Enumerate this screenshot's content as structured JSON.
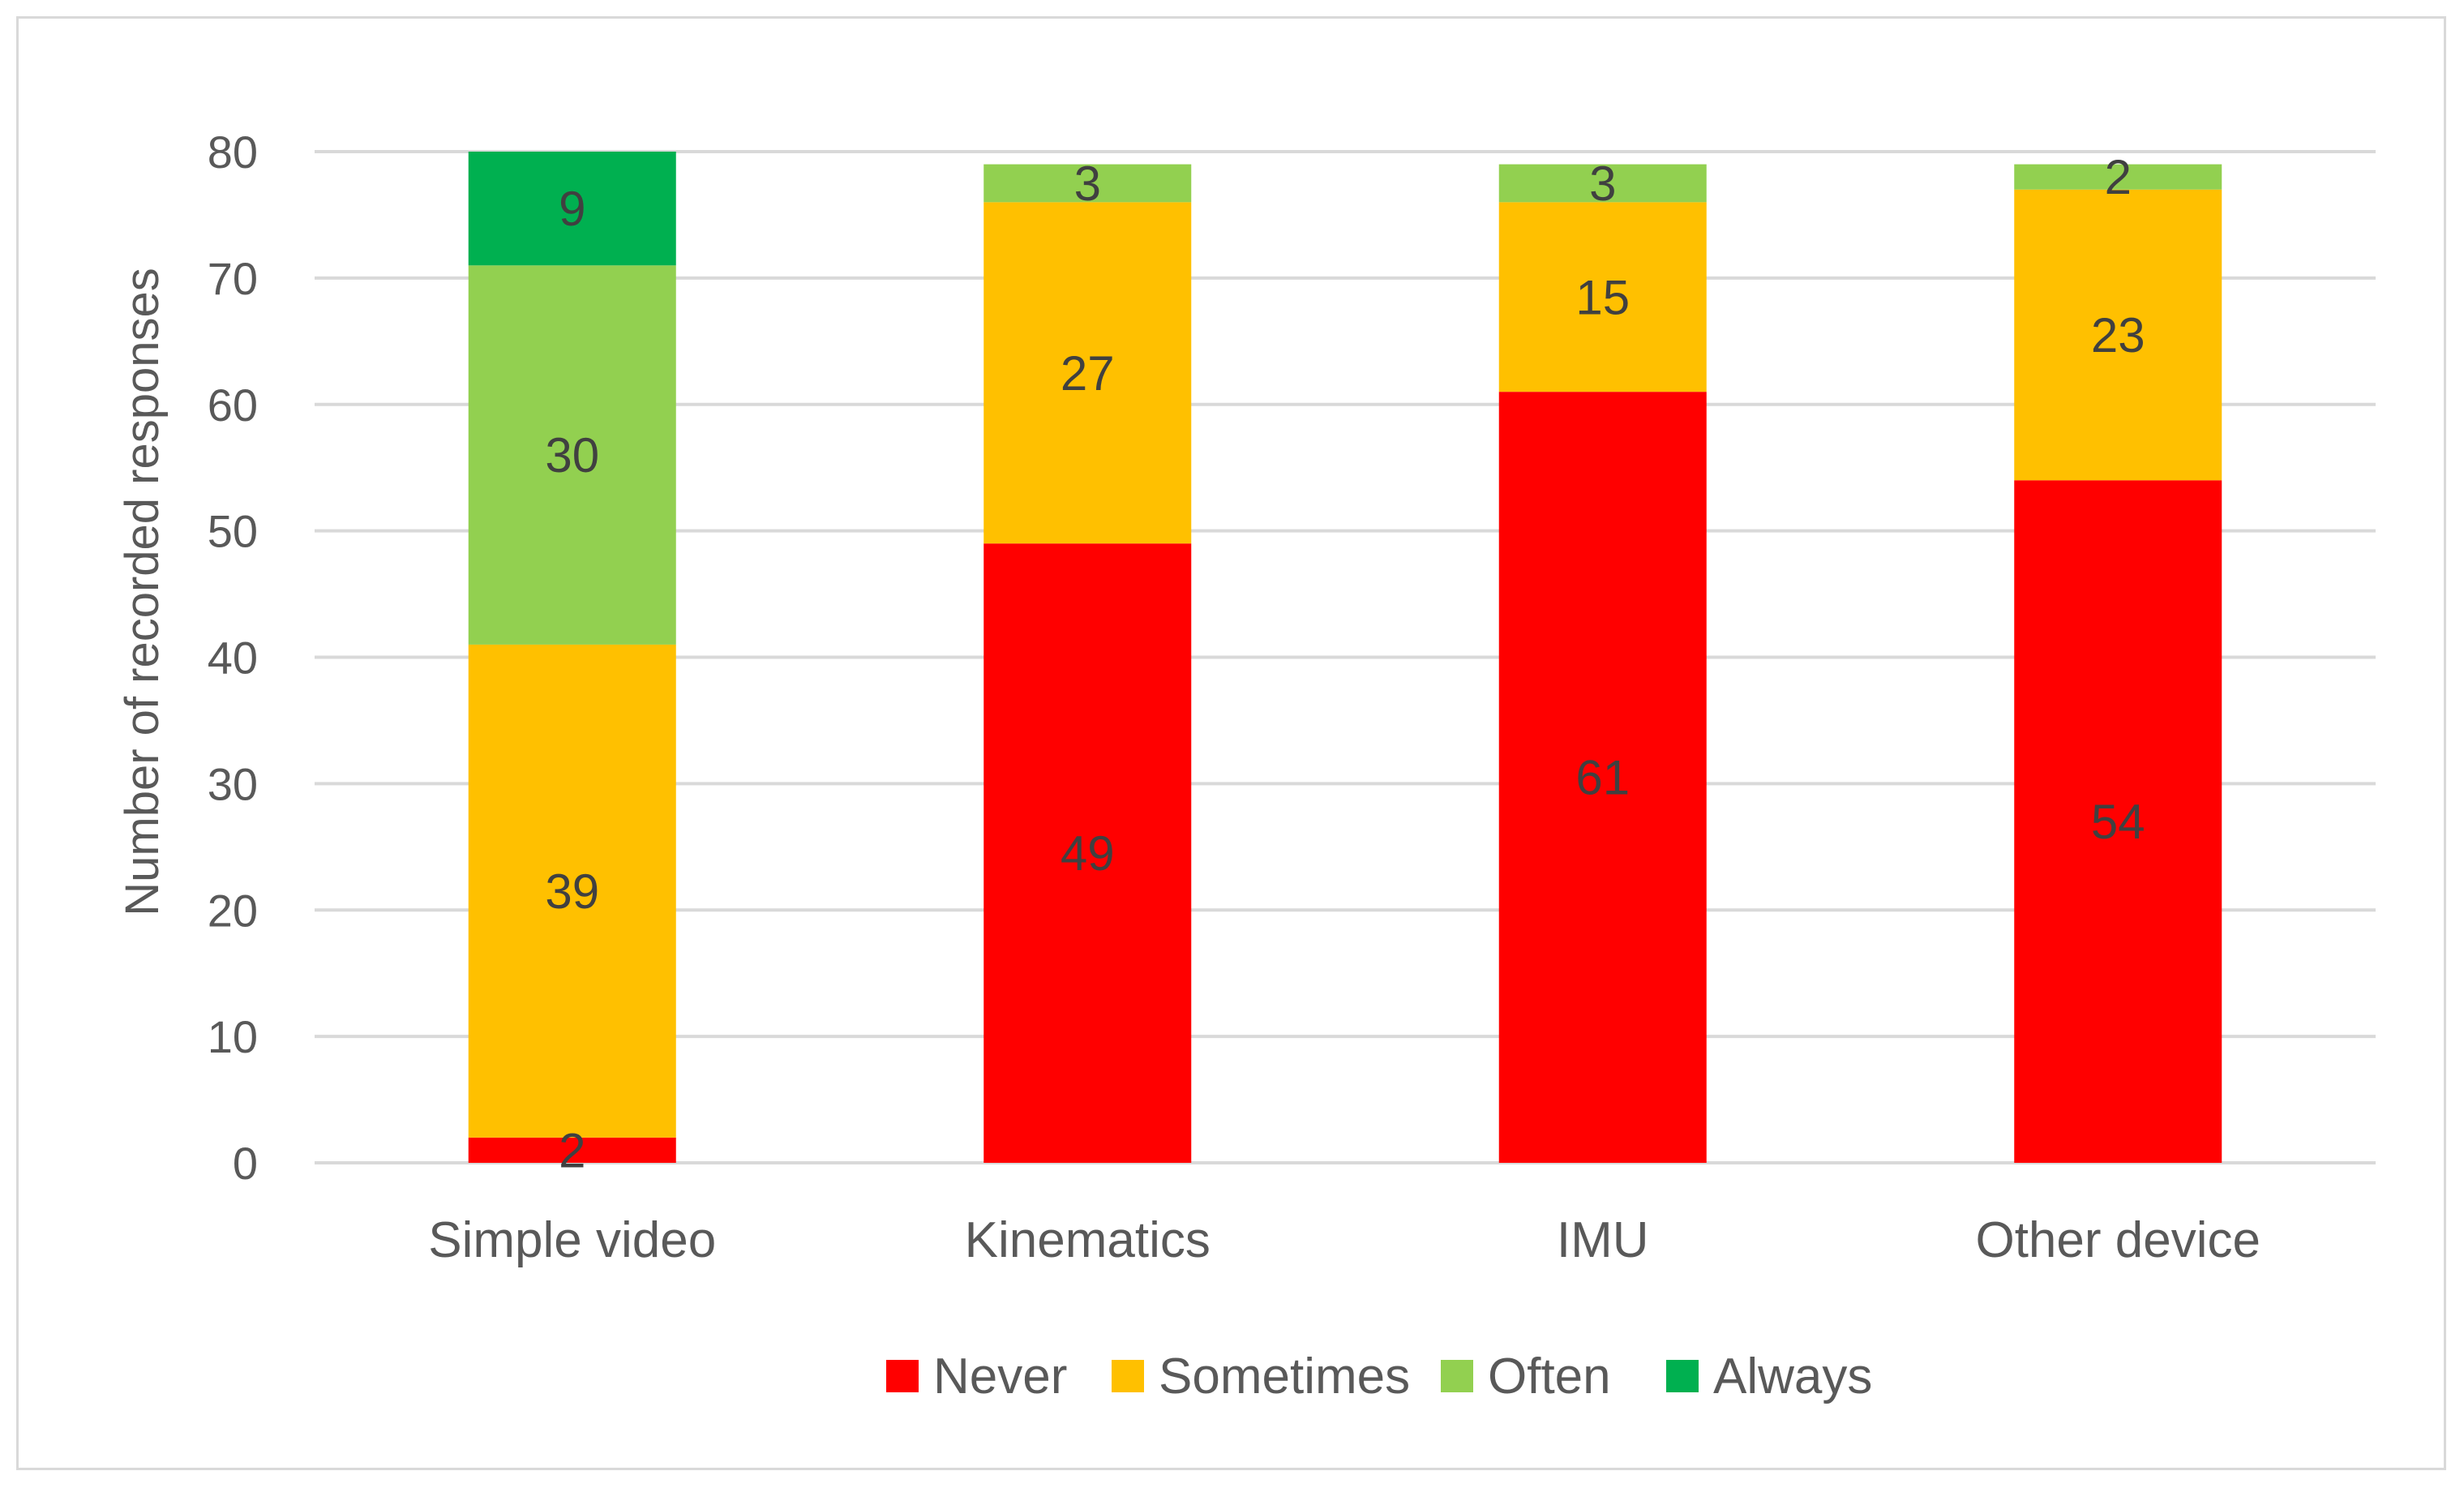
{
  "chart_data": {
    "type": "bar",
    "stacked": true,
    "categories": [
      "Simple video",
      "Kinematics",
      "IMU",
      "Other device"
    ],
    "series": [
      {
        "name": "Never",
        "color": "#ff0000",
        "values": [
          2,
          49,
          61,
          54
        ]
      },
      {
        "name": "Sometimes",
        "color": "#ffc000",
        "values": [
          39,
          27,
          15,
          23
        ]
      },
      {
        "name": "Often",
        "color": "#92d050",
        "values": [
          30,
          3,
          3,
          2
        ]
      },
      {
        "name": "Always",
        "color": "#00b050",
        "values": [
          9,
          0,
          0,
          0
        ]
      }
    ],
    "title": "",
    "xlabel": "",
    "ylabel": "Number of recorded responses",
    "ylim": [
      0,
      80
    ],
    "yticks": [
      0,
      10,
      20,
      30,
      40,
      50,
      60,
      70,
      80
    ],
    "grid": true,
    "legend_position": "bottom"
  }
}
